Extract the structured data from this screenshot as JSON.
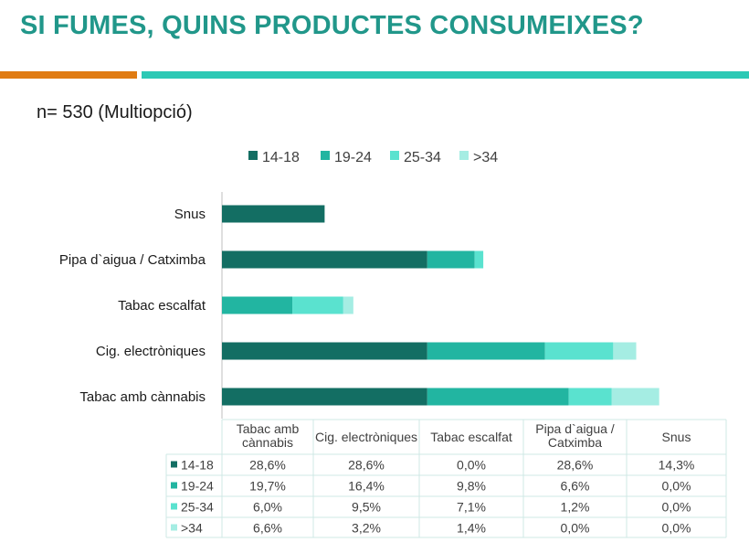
{
  "header": {
    "title": "SI FUMES, QUINS PRODUCTES CONSUMEIXES?",
    "subtitle": "n= 530 (Multiopció)"
  },
  "colors": {
    "title": "#21978a",
    "accent_orange": "#e07b12",
    "accent_teal": "#2cc9b5"
  },
  "chart_data": {
    "type": "bar",
    "orientation": "horizontal",
    "stacked": true,
    "categories": [
      "Snus",
      "Pipa d`aigua / Catximba",
      "Tabac escalfat",
      "Cig. electròniques",
      "Tabac amb cànnabis"
    ],
    "series": [
      {
        "name": "14-18",
        "color": "#136e63",
        "values": [
          14.3,
          28.6,
          0.0,
          28.6,
          28.6
        ],
        "labels": [
          "14,3%",
          "28,6%",
          "0,0%",
          "28,6%",
          "28,6%"
        ]
      },
      {
        "name": "19-24",
        "color": "#22b5a1",
        "values": [
          0.0,
          6.6,
          9.8,
          16.4,
          19.7
        ],
        "labels": [
          "0,0%",
          "6,6%",
          "9,8%",
          "16,4%",
          "19,7%"
        ]
      },
      {
        "name": "25-34",
        "color": "#5ae2cf",
        "values": [
          0.0,
          1.2,
          7.1,
          9.5,
          6.0
        ],
        "labels": [
          "0,0%",
          "1,2%",
          "7,1%",
          "9,5%",
          "6,0%"
        ]
      },
      {
        "name": ">34",
        "color": "#a5ede3",
        "values": [
          0.0,
          0.0,
          1.4,
          3.2,
          6.6
        ],
        "labels": [
          "0,0%",
          "0,0%",
          "1,4%",
          "3,2%",
          "6,6%"
        ]
      }
    ],
    "table_columns": [
      "Tabac amb cànnabis",
      "Cig. electròniques",
      "Tabac escalfat",
      "Pipa d`aigua / Catximba",
      "Snus"
    ],
    "xlim": [
      0,
      60
    ],
    "legend_position": "top",
    "grid": false
  }
}
